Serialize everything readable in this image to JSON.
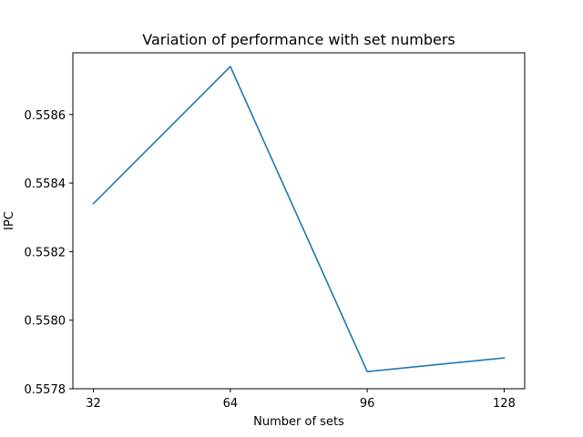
{
  "chart_data": {
    "type": "line",
    "title": "Variation of performance with set numbers",
    "xlabel": "Number of sets",
    "ylabel": "IPC",
    "x": [
      32,
      64,
      96,
      128
    ],
    "series": [
      {
        "values": [
          0.55834,
          0.55874,
          0.55785,
          0.55789
        ],
        "color": "#1f77b4"
      }
    ],
    "xticks": [
      32,
      64,
      96,
      128
    ],
    "xtick_labels": [
      "32",
      "64",
      "96",
      "128"
    ],
    "yticks": [
      0.5578,
      0.558,
      0.5582,
      0.5584,
      0.5586
    ],
    "ytick_labels": [
      "0.5578",
      "0.5580",
      "0.5582",
      "0.5584",
      "0.5586"
    ],
    "xlim": [
      27.2,
      132.8
    ],
    "ylim": [
      0.5578,
      0.55878
    ],
    "grid": false,
    "legend": "none"
  }
}
